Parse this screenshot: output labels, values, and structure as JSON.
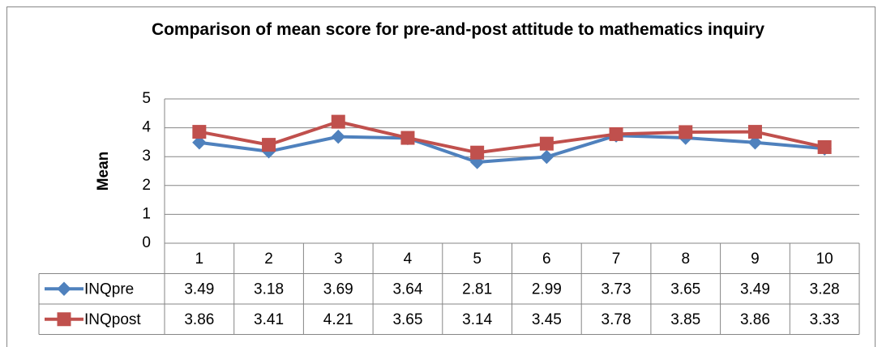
{
  "chart_data": {
    "type": "line",
    "title": "Comparison of mean score for pre-and-post attitude to mathematics inquiry",
    "y_label": "Mean",
    "categories": [
      "1",
      "2",
      "3",
      "4",
      "5",
      "6",
      "7",
      "8",
      "9",
      "10"
    ],
    "series": [
      {
        "name": "INQpre",
        "color": "#4f81bd",
        "marker": "diamond",
        "values": [
          3.49,
          3.18,
          3.69,
          3.64,
          2.81,
          2.99,
          3.73,
          3.65,
          3.49,
          3.28
        ]
      },
      {
        "name": "INQpost",
        "color": "#c0504d",
        "marker": "square",
        "values": [
          3.86,
          3.41,
          4.21,
          3.65,
          3.14,
          3.45,
          3.78,
          3.85,
          3.86,
          3.33
        ]
      }
    ],
    "ylim": [
      0,
      5
    ],
    "yticks": [
      0,
      1,
      2,
      3,
      4,
      5
    ],
    "grid": true,
    "data_table": true
  }
}
